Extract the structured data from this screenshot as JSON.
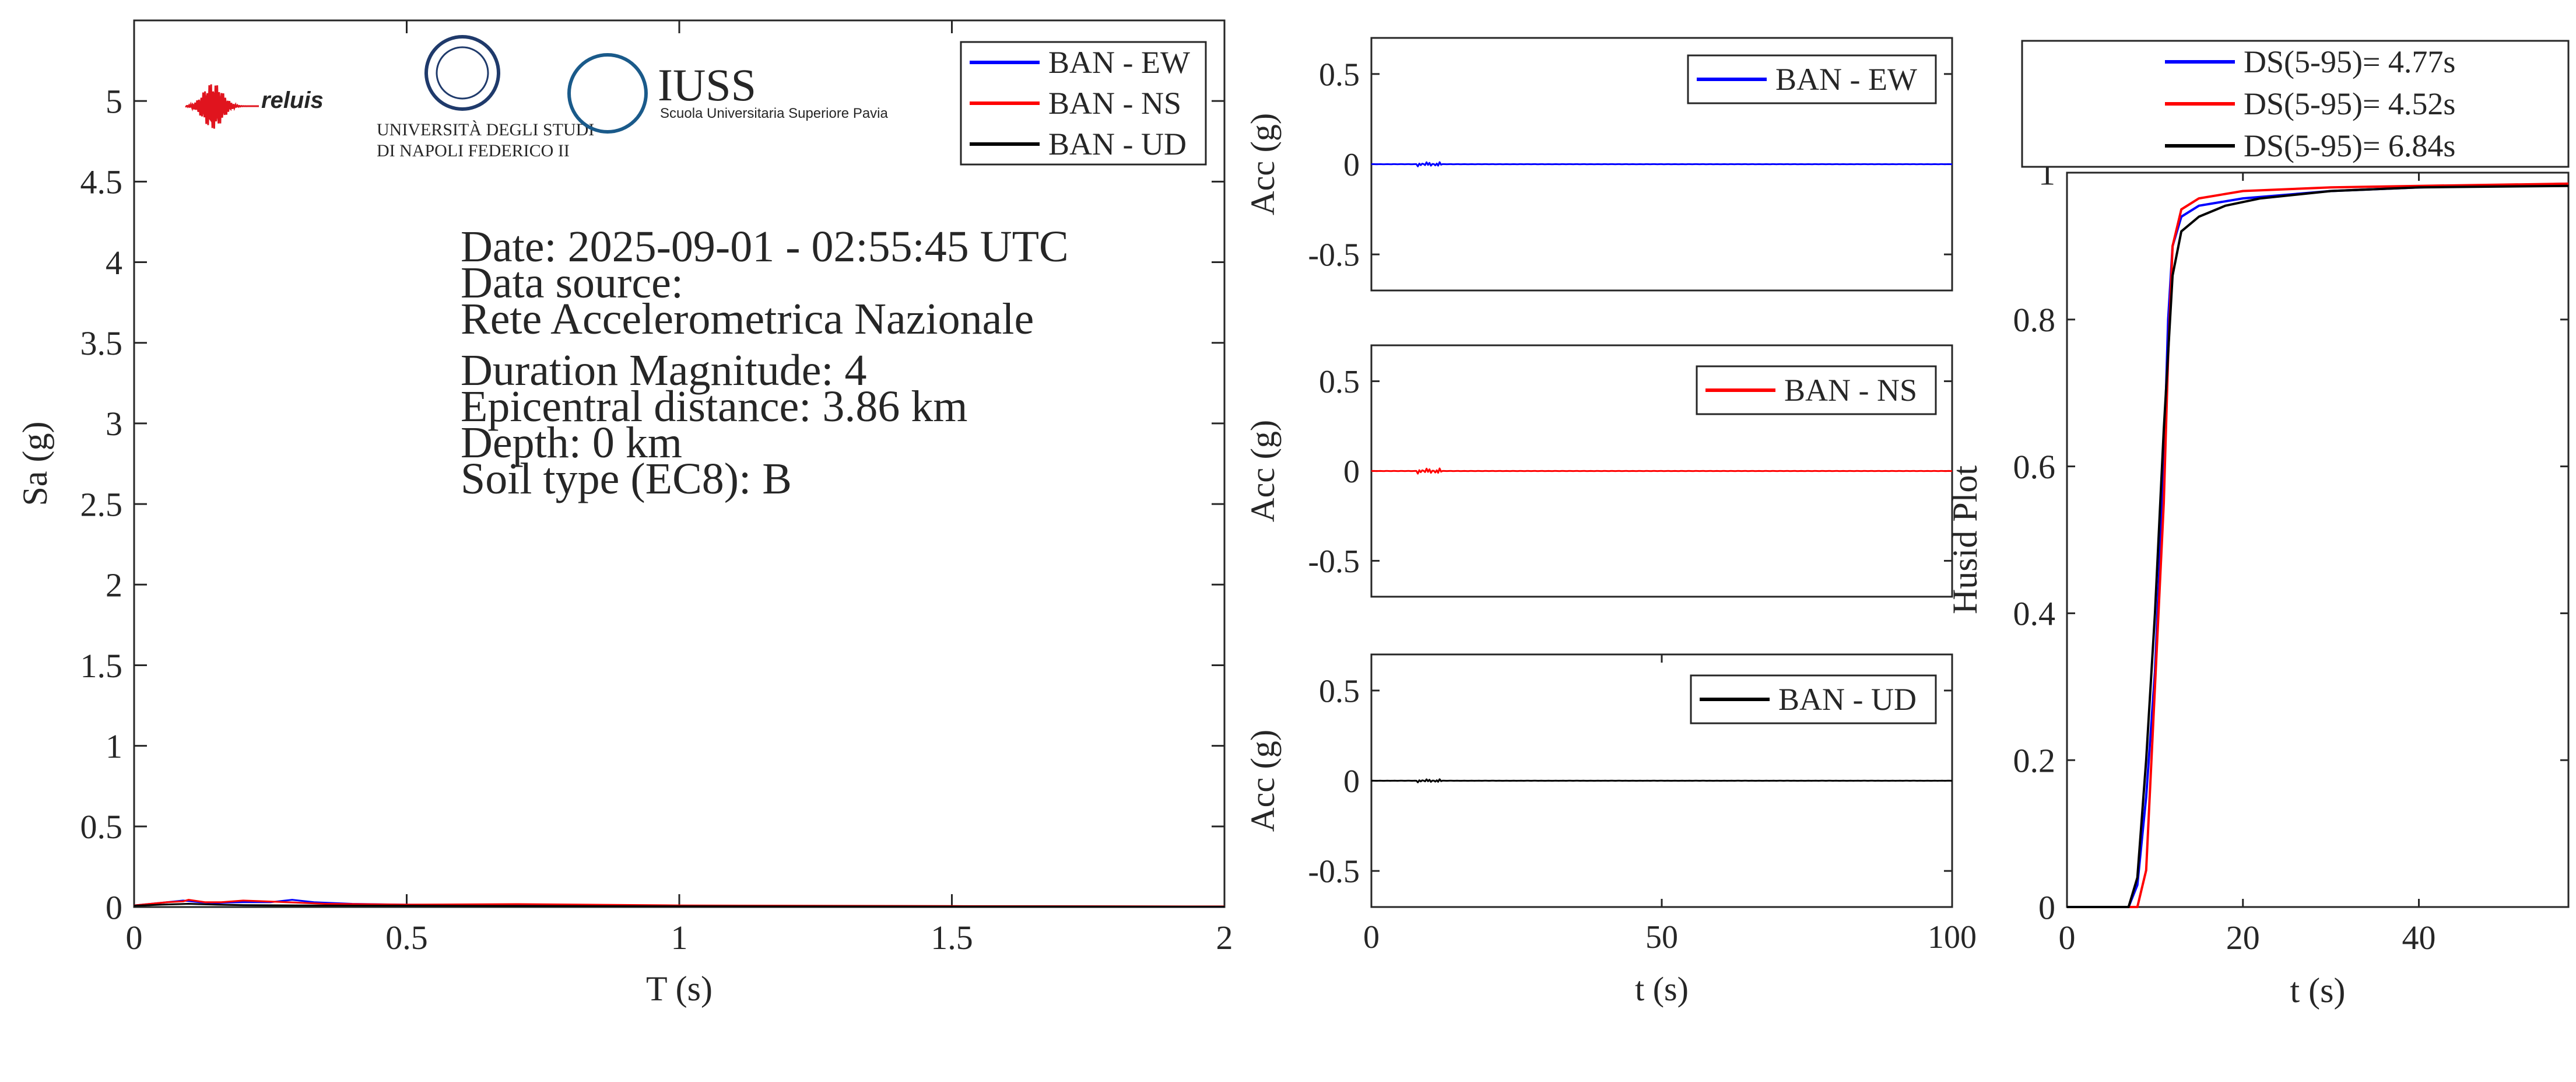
{
  "colors": {
    "ew": "#0000ff",
    "ns": "#ff0000",
    "ud": "#000000",
    "axis": "#262626",
    "logo_blue": "#1a5a8a",
    "logo_red": "#e0141e",
    "logo_navy": "#1f3a6b"
  },
  "logos": {
    "reluis": "reluis",
    "unina_line1": "UNIVERSITÀ DEGLI STUDI",
    "unina_line2": "DI NAPOLI FEDERICO II",
    "iuss_title": "IUSS",
    "iuss_subtitle": "Scuola Universitaria Superiore Pavia"
  },
  "info": {
    "date": "Date: 2025-09-01 - 02:55:45 UTC",
    "source_label": "Data source:",
    "source": "Rete Accelerometrica Nazionale",
    "magnitude": "Duration Magnitude: 4",
    "distance": "Epicentral distance: 3.86 km",
    "depth": "Depth: 0 km",
    "soil": "Soil type (EC8): B"
  },
  "chart_data": [
    {
      "type": "line",
      "name": "spectra",
      "xlabel": "T (s)",
      "ylabel": "Sa (g)",
      "xlim": [
        0,
        2
      ],
      "ylim": [
        0,
        5.5
      ],
      "xticks": [
        0,
        0.5,
        1,
        1.5,
        2
      ],
      "xtick_labels": [
        "0",
        "0.5",
        "1",
        "1.5",
        "2"
      ],
      "yticks": [
        0,
        0.5,
        1,
        1.5,
        2,
        2.5,
        3,
        3.5,
        4,
        4.5,
        5
      ],
      "ytick_labels": [
        "0",
        "0.5",
        "1",
        "1.5",
        "2",
        "2.5",
        "3",
        "3.5",
        "4",
        "4.5",
        "5"
      ],
      "legend_position": "top-right",
      "series": [
        {
          "name": "BAN - EW",
          "color": "ew",
          "x": [
            0,
            0.03,
            0.06,
            0.09,
            0.12,
            0.15,
            0.2,
            0.25,
            0.29,
            0.33,
            0.4,
            0.5,
            0.7,
            1.0,
            1.5,
            2.0
          ],
          "y": [
            0.01,
            0.02,
            0.03,
            0.04,
            0.03,
            0.025,
            0.03,
            0.03,
            0.045,
            0.03,
            0.02,
            0.015,
            0.012,
            0.008,
            0.005,
            0.003
          ]
        },
        {
          "name": "BAN - NS",
          "color": "ns",
          "x": [
            0,
            0.03,
            0.06,
            0.09,
            0.1,
            0.13,
            0.16,
            0.2,
            0.24,
            0.28,
            0.35,
            0.5,
            0.7,
            1.0,
            1.5,
            2.0
          ],
          "y": [
            0.01,
            0.02,
            0.03,
            0.035,
            0.045,
            0.03,
            0.03,
            0.04,
            0.035,
            0.03,
            0.02,
            0.015,
            0.018,
            0.01,
            0.006,
            0.004
          ]
        },
        {
          "name": "BAN - UD",
          "color": "ud",
          "x": [
            0,
            0.05,
            0.1,
            0.15,
            0.2,
            0.3,
            0.5,
            0.8,
            1.2,
            2.0
          ],
          "y": [
            0.008,
            0.015,
            0.02,
            0.015,
            0.012,
            0.01,
            0.008,
            0.006,
            0.004,
            0.002
          ]
        }
      ]
    },
    {
      "type": "line",
      "name": "acc-ew",
      "xlabel": "",
      "ylabel": "Acc (g)",
      "xlim": [
        0,
        100
      ],
      "ylim": [
        -0.7,
        0.7
      ],
      "yticks": [
        -0.5,
        0,
        0.5
      ],
      "ytick_labels": [
        "-0.5",
        "0",
        "0.5"
      ],
      "legend_position": "top-right",
      "series": [
        {
          "name": "BAN - EW",
          "color": "ew",
          "amplitude": 0.004,
          "burst_x": [
            8,
            12
          ]
        }
      ]
    },
    {
      "type": "line",
      "name": "acc-ns",
      "xlabel": "",
      "ylabel": "Acc (g)",
      "xlim": [
        0,
        100
      ],
      "ylim": [
        -0.7,
        0.7
      ],
      "yticks": [
        -0.5,
        0,
        0.5
      ],
      "ytick_labels": [
        "-0.5",
        "0",
        "0.5"
      ],
      "legend_position": "top-right",
      "series": [
        {
          "name": "BAN - NS",
          "color": "ns",
          "amplitude": 0.005,
          "burst_x": [
            8,
            12
          ]
        }
      ]
    },
    {
      "type": "line",
      "name": "acc-ud",
      "xlabel": "t (s)",
      "ylabel": "Acc (g)",
      "xlim": [
        0,
        100
      ],
      "ylim": [
        -0.7,
        0.7
      ],
      "xticks": [
        0,
        50,
        100
      ],
      "xtick_labels": [
        "0",
        "50",
        "100"
      ],
      "yticks": [
        -0.5,
        0,
        0.5
      ],
      "ytick_labels": [
        "-0.5",
        "0",
        "0.5"
      ],
      "legend_position": "top-right",
      "series": [
        {
          "name": "BAN - UD",
          "color": "ud",
          "amplitude": 0.003,
          "burst_x": [
            8,
            12
          ]
        }
      ]
    },
    {
      "type": "line",
      "name": "husid",
      "xlabel": "t (s)",
      "ylabel": "Husid Plot",
      "xlim": [
        0,
        57
      ],
      "ylim": [
        0,
        1
      ],
      "xticks": [
        0,
        20,
        40
      ],
      "xtick_labels": [
        "0",
        "20",
        "40"
      ],
      "yticks": [
        0,
        0.2,
        0.4,
        0.6,
        0.8,
        1
      ],
      "ytick_labels": [
        "0",
        "0.2",
        "0.4",
        "0.6",
        "0.8",
        "1"
      ],
      "legend_position": "above plot",
      "series": [
        {
          "name": "DS(5-95)= 4.77s",
          "color": "ew",
          "x": [
            0,
            7,
            8,
            9,
            10,
            11,
            11.5,
            12,
            13,
            15,
            20,
            30,
            40,
            57
          ],
          "y": [
            0,
            0,
            0.03,
            0.15,
            0.32,
            0.6,
            0.8,
            0.9,
            0.94,
            0.955,
            0.965,
            0.975,
            0.98,
            0.985
          ]
        },
        {
          "name": "DS(5-95)= 4.52s",
          "color": "ns",
          "x": [
            0,
            8,
            9,
            10,
            11,
            11.5,
            12,
            13,
            15,
            20,
            30,
            40,
            57
          ],
          "y": [
            0,
            0,
            0.05,
            0.3,
            0.55,
            0.75,
            0.9,
            0.95,
            0.965,
            0.975,
            0.98,
            0.982,
            0.985
          ]
        },
        {
          "name": "DS(5-95)= 6.84s",
          "color": "ud",
          "x": [
            0,
            7,
            8,
            9,
            10,
            11,
            12,
            13,
            15,
            18,
            22,
            30,
            40,
            57
          ],
          "y": [
            0,
            0,
            0.04,
            0.2,
            0.4,
            0.65,
            0.86,
            0.92,
            0.94,
            0.955,
            0.965,
            0.975,
            0.98,
            0.982
          ]
        }
      ]
    }
  ]
}
